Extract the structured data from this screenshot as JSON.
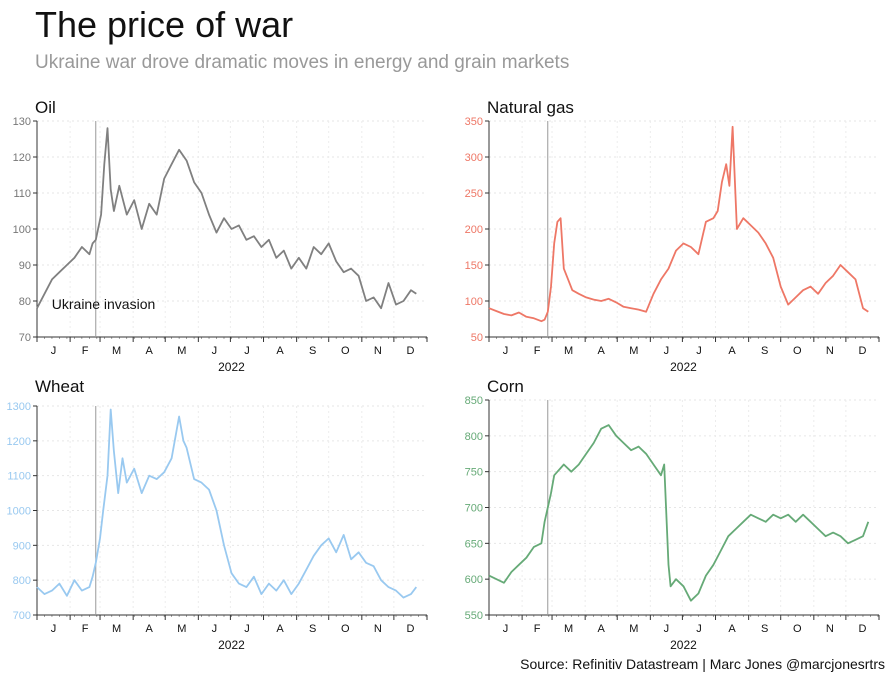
{
  "header": {
    "title": "The price of war",
    "subtitle": "Ukraine war drove dramatic moves in energy and grain markets"
  },
  "footer": {
    "source": "Source: Refinitiv Datastream | Marc Jones @marcjonesrtrs"
  },
  "chart_data": [
    {
      "id": "oil",
      "type": "line",
      "title": "Oil",
      "color": "#808080",
      "xlabel": "2022",
      "ylabel": "",
      "ylim": [
        70,
        130
      ],
      "yticks": [
        70,
        80,
        90,
        100,
        110,
        120,
        130
      ],
      "months": [
        "J",
        "F",
        "M",
        "A",
        "M",
        "J",
        "J",
        "A",
        "S",
        "O",
        "N",
        "D"
      ],
      "invasion_day": 55,
      "annotation": "Ukraine invasion",
      "grid": true,
      "x": [
        0,
        7,
        14,
        21,
        28,
        35,
        42,
        49,
        52,
        55,
        60,
        63,
        66,
        69,
        72,
        77,
        84,
        91,
        98,
        105,
        112,
        119,
        126,
        133,
        140,
        147,
        154,
        161,
        168,
        175,
        182,
        189,
        196,
        203,
        210,
        217,
        224,
        231,
        238,
        245,
        252,
        259,
        266,
        273,
        280,
        287,
        294,
        301,
        308,
        315,
        322,
        329,
        336,
        343,
        350,
        355
      ],
      "values": [
        78,
        82,
        86,
        88,
        90,
        92,
        95,
        93,
        96,
        97,
        104,
        118,
        128,
        111,
        105,
        112,
        104,
        108,
        100,
        107,
        104,
        114,
        118,
        122,
        119,
        113,
        110,
        104,
        99,
        103,
        100,
        101,
        97,
        98,
        95,
        97,
        92,
        94,
        89,
        92,
        89,
        95,
        93,
        96,
        91,
        88,
        89,
        87,
        80,
        81,
        78,
        85,
        79,
        80,
        83,
        82
      ]
    },
    {
      "id": "gas",
      "type": "line",
      "title": "Natural gas",
      "color": "#ee7766",
      "xlabel": "2022",
      "ylabel": "",
      "ylim": [
        50,
        350
      ],
      "yticks": [
        50,
        100,
        150,
        200,
        250,
        300,
        350
      ],
      "months": [
        "J",
        "F",
        "M",
        "A",
        "M",
        "J",
        "J",
        "A",
        "S",
        "O",
        "N",
        "D"
      ],
      "invasion_day": 55,
      "grid": true,
      "x": [
        0,
        7,
        14,
        21,
        28,
        35,
        42,
        49,
        52,
        55,
        58,
        61,
        64,
        67,
        70,
        74,
        78,
        84,
        91,
        98,
        105,
        112,
        119,
        126,
        133,
        140,
        147,
        154,
        161,
        168,
        175,
        182,
        189,
        196,
        203,
        210,
        214,
        218,
        222,
        225,
        228,
        232,
        238,
        245,
        252,
        259,
        266,
        273,
        280,
        287,
        294,
        301,
        308,
        315,
        322,
        329,
        336,
        343,
        350,
        355
      ],
      "values": [
        90,
        86,
        82,
        80,
        84,
        78,
        76,
        72,
        74,
        85,
        120,
        180,
        210,
        215,
        145,
        130,
        115,
        110,
        105,
        102,
        100,
        103,
        98,
        92,
        90,
        88,
        85,
        110,
        130,
        145,
        170,
        180,
        175,
        165,
        210,
        215,
        225,
        265,
        290,
        260,
        342,
        200,
        215,
        205,
        195,
        180,
        160,
        120,
        95,
        105,
        115,
        120,
        110,
        125,
        135,
        150,
        140,
        130,
        90,
        85
      ]
    },
    {
      "id": "wheat",
      "type": "line",
      "title": "Wheat",
      "color": "#99c9f0",
      "xlabel": "2022",
      "ylabel": "",
      "ylim": [
        700,
        1300
      ],
      "yticks": [
        700,
        800,
        900,
        1000,
        1100,
        1200,
        1300
      ],
      "months": [
        "J",
        "F",
        "M",
        "A",
        "M",
        "J",
        "J",
        "A",
        "S",
        "O",
        "N",
        "D"
      ],
      "invasion_day": 55,
      "grid": true,
      "x": [
        0,
        7,
        14,
        21,
        28,
        35,
        42,
        49,
        52,
        55,
        59,
        62,
        66,
        69,
        72,
        76,
        80,
        84,
        91,
        98,
        105,
        112,
        119,
        126,
        133,
        137,
        140,
        147,
        154,
        161,
        168,
        175,
        182,
        189,
        196,
        203,
        210,
        217,
        224,
        231,
        238,
        245,
        252,
        259,
        266,
        273,
        280,
        287,
        294,
        301,
        308,
        315,
        322,
        329,
        336,
        343,
        350,
        355
      ],
      "values": [
        780,
        760,
        770,
        790,
        755,
        800,
        770,
        780,
        810,
        850,
        920,
        1000,
        1100,
        1290,
        1170,
        1050,
        1150,
        1080,
        1120,
        1050,
        1100,
        1090,
        1110,
        1150,
        1270,
        1200,
        1180,
        1090,
        1080,
        1060,
        1000,
        900,
        820,
        790,
        780,
        810,
        760,
        790,
        770,
        800,
        760,
        790,
        830,
        870,
        900,
        920,
        880,
        930,
        860,
        880,
        850,
        840,
        800,
        780,
        770,
        750,
        760,
        780
      ]
    },
    {
      "id": "corn",
      "type": "line",
      "title": "Corn",
      "color": "#66aa77",
      "xlabel": "2022",
      "ylabel": "",
      "ylim": [
        550,
        850
      ],
      "yticks": [
        550,
        600,
        650,
        700,
        750,
        800,
        850
      ],
      "months": [
        "J",
        "F",
        "M",
        "A",
        "M",
        "J",
        "J",
        "A",
        "S",
        "O",
        "N",
        "D"
      ],
      "invasion_day": 55,
      "grid": true,
      "x": [
        0,
        7,
        14,
        21,
        28,
        35,
        42,
        49,
        52,
        55,
        58,
        61,
        64,
        67,
        70,
        77,
        84,
        91,
        98,
        105,
        112,
        119,
        126,
        133,
        140,
        147,
        154,
        161,
        164,
        168,
        170,
        175,
        182,
        189,
        196,
        203,
        210,
        217,
        224,
        231,
        238,
        245,
        252,
        259,
        266,
        273,
        280,
        287,
        294,
        301,
        308,
        315,
        322,
        329,
        336,
        343,
        350,
        355
      ],
      "values": [
        605,
        600,
        595,
        610,
        620,
        630,
        645,
        650,
        680,
        700,
        720,
        745,
        750,
        755,
        760,
        750,
        760,
        775,
        790,
        810,
        815,
        800,
        790,
        780,
        785,
        775,
        760,
        745,
        760,
        620,
        590,
        600,
        590,
        570,
        580,
        605,
        620,
        640,
        660,
        670,
        680,
        690,
        685,
        680,
        690,
        685,
        690,
        680,
        690,
        680,
        670,
        660,
        665,
        660,
        650,
        655,
        660,
        680
      ]
    }
  ]
}
